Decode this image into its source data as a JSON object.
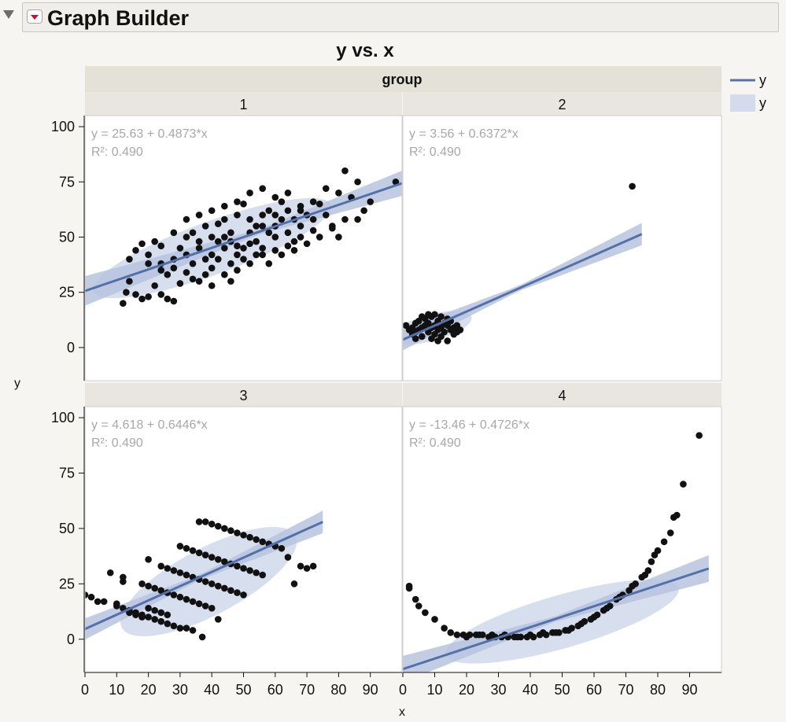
{
  "header": {
    "title": "Graph Builder",
    "disclosure_icon": "disclosure-triangle-down-icon",
    "menu_icon": "red-menu-triangle-icon"
  },
  "chart_data": {
    "type": "scatter",
    "title": "y vs. x",
    "xlabel": "x",
    "ylabel": "y",
    "group_label": "group",
    "xlim": [
      0,
      100
    ],
    "ylim": [
      -15,
      105
    ],
    "xticks": [
      0,
      10,
      20,
      30,
      40,
      50,
      60,
      70,
      80,
      90
    ],
    "yticks": [
      0,
      25,
      50,
      75,
      100
    ],
    "legend": {
      "position": "right",
      "entries": [
        {
          "label": "y",
          "kind": "line",
          "color": "#5470a9"
        },
        {
          "label": "y",
          "kind": "band",
          "color": "#d3dbec"
        }
      ]
    },
    "colors": {
      "points": "#111111",
      "fit_line": "#5470a9",
      "confidence_band": "#b7c4df",
      "density_ellipse": "#d3dbec",
      "annotation_text": "#a8a8a8"
    },
    "panels": [
      {
        "label": "1",
        "equation": "y = 25.63 + 0.4873*x",
        "r2": "R²: 0.490",
        "intercept": 25.63,
        "slope": 0.4873,
        "ellipse": {
          "cx": 40,
          "cy": 45,
          "rx": 40,
          "ry": 12,
          "angle": 20
        },
        "points": [
          [
            12,
            20
          ],
          [
            13,
            25
          ],
          [
            14,
            30
          ],
          [
            16,
            24
          ],
          [
            18,
            22
          ],
          [
            20,
            23
          ],
          [
            22,
            28
          ],
          [
            24,
            24
          ],
          [
            26,
            22
          ],
          [
            28,
            21
          ],
          [
            14,
            40
          ],
          [
            16,
            44
          ],
          [
            18,
            47
          ],
          [
            20,
            42
          ],
          [
            22,
            48
          ],
          [
            24,
            38
          ],
          [
            26,
            33
          ],
          [
            28,
            36
          ],
          [
            30,
            29
          ],
          [
            32,
            34
          ],
          [
            34,
            38
          ],
          [
            36,
            45
          ],
          [
            38,
            40
          ],
          [
            40,
            36
          ],
          [
            42,
            48
          ],
          [
            44,
            45
          ],
          [
            46,
            52
          ],
          [
            48,
            42
          ],
          [
            50,
            40
          ],
          [
            52,
            47
          ],
          [
            54,
            55
          ],
          [
            56,
            60
          ],
          [
            58,
            62
          ],
          [
            60,
            50
          ],
          [
            62,
            58
          ],
          [
            64,
            52
          ],
          [
            66,
            48
          ],
          [
            68,
            62
          ],
          [
            70,
            60
          ],
          [
            72,
            58
          ],
          [
            74,
            65
          ],
          [
            76,
            60
          ],
          [
            78,
            54
          ],
          [
            80,
            50
          ],
          [
            80,
            70
          ],
          [
            82,
            80
          ],
          [
            84,
            68
          ],
          [
            86,
            58
          ],
          [
            88,
            62
          ],
          [
            90,
            66
          ],
          [
            30,
            45
          ],
          [
            32,
            50
          ],
          [
            34,
            52
          ],
          [
            36,
            48
          ],
          [
            38,
            55
          ],
          [
            40,
            50
          ],
          [
            42,
            56
          ],
          [
            44,
            58
          ],
          [
            46,
            48
          ],
          [
            48,
            60
          ],
          [
            50,
            65
          ],
          [
            52,
            58
          ],
          [
            54,
            48
          ],
          [
            56,
            45
          ],
          [
            58,
            52
          ],
          [
            60,
            55
          ],
          [
            62,
            66
          ],
          [
            64,
            70
          ],
          [
            66,
            58
          ],
          [
            68,
            55
          ],
          [
            36,
            30
          ],
          [
            40,
            28
          ],
          [
            44,
            33
          ],
          [
            48,
            35
          ],
          [
            52,
            38
          ],
          [
            56,
            42
          ],
          [
            60,
            44
          ],
          [
            64,
            46
          ],
          [
            68,
            50
          ],
          [
            72,
            53
          ],
          [
            24,
            46
          ],
          [
            28,
            52
          ],
          [
            32,
            58
          ],
          [
            36,
            60
          ],
          [
            40,
            62
          ],
          [
            44,
            64
          ],
          [
            48,
            66
          ],
          [
            52,
            70
          ],
          [
            56,
            72
          ],
          [
            60,
            68
          ],
          [
            20,
            38
          ],
          [
            24,
            35
          ],
          [
            28,
            40
          ],
          [
            32,
            42
          ],
          [
            34,
            31
          ],
          [
            38,
            33
          ],
          [
            42,
            40
          ],
          [
            46,
            38
          ],
          [
            50,
            45
          ],
          [
            54,
            42
          ],
          [
            58,
            38
          ],
          [
            62,
            42
          ],
          [
            66,
            44
          ],
          [
            70,
            47
          ],
          [
            74,
            50
          ],
          [
            78,
            55
          ],
          [
            82,
            58
          ],
          [
            40,
            42
          ],
          [
            44,
            50
          ],
          [
            48,
            46
          ],
          [
            52,
            52
          ],
          [
            56,
            55
          ],
          [
            60,
            60
          ],
          [
            64,
            62
          ],
          [
            68,
            64
          ],
          [
            72,
            66
          ],
          [
            76,
            72
          ],
          [
            86,
            75
          ],
          [
            98,
            75
          ],
          [
            46,
            30
          ]
        ]
      },
      {
        "label": "2",
        "equation": "y = 3.56 + 0.6372*x",
        "r2": "R²: 0.490",
        "intercept": 3.56,
        "slope": 0.6372,
        "ellipse": {
          "cx": 9,
          "cy": 9,
          "rx": 13,
          "ry": 6,
          "angle": 15
        },
        "points": [
          [
            72,
            73
          ],
          [
            1,
            10
          ],
          [
            2,
            8
          ],
          [
            3,
            9
          ],
          [
            3,
            6
          ],
          [
            4,
            11
          ],
          [
            4,
            7
          ],
          [
            5,
            8
          ],
          [
            5,
            12
          ],
          [
            6,
            9
          ],
          [
            6,
            5
          ],
          [
            7,
            10
          ],
          [
            7,
            13
          ],
          [
            8,
            7
          ],
          [
            8,
            11
          ],
          [
            9,
            9
          ],
          [
            9,
            14
          ],
          [
            10,
            6
          ],
          [
            10,
            10
          ],
          [
            11,
            8
          ],
          [
            11,
            12
          ],
          [
            12,
            9
          ],
          [
            12,
            5
          ],
          [
            13,
            11
          ],
          [
            13,
            7
          ],
          [
            14,
            10
          ],
          [
            14,
            3
          ],
          [
            15,
            8
          ],
          [
            15,
            12
          ],
          [
            16,
            9
          ],
          [
            16,
            6
          ],
          [
            17,
            10
          ],
          [
            17,
            7
          ],
          [
            18,
            8
          ],
          [
            6,
            14
          ],
          [
            8,
            15
          ],
          [
            10,
            15
          ],
          [
            12,
            14
          ],
          [
            14,
            13
          ],
          [
            4,
            4
          ],
          [
            9,
            4
          ],
          [
            11,
            3
          ]
        ]
      },
      {
        "label": "3",
        "equation": "y = 4.618 + 0.6446*x",
        "r2": "R²: 0.490",
        "intercept": 4.618,
        "slope": 0.6446,
        "ellipse": {
          "cx": 39,
          "cy": 26,
          "rx": 31,
          "ry": 15,
          "angle": 28
        },
        "points": [
          [
            0,
            20
          ],
          [
            2,
            19
          ],
          [
            4,
            17
          ],
          [
            6,
            17
          ],
          [
            8,
            30
          ],
          [
            10,
            16
          ],
          [
            12,
            26
          ],
          [
            12,
            28
          ],
          [
            10,
            15
          ],
          [
            12,
            14
          ],
          [
            14,
            13
          ],
          [
            16,
            12
          ],
          [
            18,
            11
          ],
          [
            20,
            10
          ],
          [
            22,
            9
          ],
          [
            24,
            8
          ],
          [
            26,
            7
          ],
          [
            28,
            6
          ],
          [
            30,
            5
          ],
          [
            32,
            5
          ],
          [
            34,
            4
          ],
          [
            37,
            1
          ],
          [
            14,
            12
          ],
          [
            16,
            11
          ],
          [
            18,
            10
          ],
          [
            20,
            14
          ],
          [
            22,
            13
          ],
          [
            24,
            12
          ],
          [
            26,
            11
          ],
          [
            18,
            25
          ],
          [
            20,
            24
          ],
          [
            22,
            23
          ],
          [
            24,
            22
          ],
          [
            26,
            21
          ],
          [
            28,
            20
          ],
          [
            30,
            19
          ],
          [
            32,
            18
          ],
          [
            34,
            17
          ],
          [
            36,
            16
          ],
          [
            38,
            15
          ],
          [
            40,
            14
          ],
          [
            42,
            9
          ],
          [
            20,
            36
          ],
          [
            24,
            33
          ],
          [
            26,
            32
          ],
          [
            28,
            31
          ],
          [
            30,
            30
          ],
          [
            32,
            29
          ],
          [
            34,
            28
          ],
          [
            36,
            27
          ],
          [
            38,
            26
          ],
          [
            40,
            25
          ],
          [
            42,
            24
          ],
          [
            44,
            23
          ],
          [
            46,
            22
          ],
          [
            48,
            21
          ],
          [
            50,
            20
          ],
          [
            30,
            42
          ],
          [
            32,
            41
          ],
          [
            34,
            40
          ],
          [
            36,
            39
          ],
          [
            38,
            38
          ],
          [
            40,
            37
          ],
          [
            42,
            36
          ],
          [
            44,
            35
          ],
          [
            46,
            34
          ],
          [
            48,
            33
          ],
          [
            50,
            32
          ],
          [
            52,
            31
          ],
          [
            54,
            30
          ],
          [
            56,
            29
          ],
          [
            36,
            53
          ],
          [
            38,
            53
          ],
          [
            40,
            52
          ],
          [
            42,
            51
          ],
          [
            44,
            50
          ],
          [
            46,
            49
          ],
          [
            48,
            48
          ],
          [
            50,
            47
          ],
          [
            52,
            46
          ],
          [
            54,
            45
          ],
          [
            56,
            44
          ],
          [
            58,
            43
          ],
          [
            60,
            42
          ],
          [
            62,
            41
          ],
          [
            64,
            37
          ],
          [
            66,
            25
          ],
          [
            68,
            33
          ],
          [
            70,
            32
          ],
          [
            72,
            33
          ]
        ]
      },
      {
        "label": "4",
        "equation": "y = -13.46 + 0.4726*x",
        "r2": "R²: 0.490",
        "intercept": -13.46,
        "slope": 0.4726,
        "ellipse": {
          "cx": 50,
          "cy": 8,
          "rx": 38,
          "ry": 12,
          "angle": 16
        },
        "points": [
          [
            2,
            24
          ],
          [
            2,
            23
          ],
          [
            4,
            18
          ],
          [
            5,
            15
          ],
          [
            7,
            12
          ],
          [
            10,
            9
          ],
          [
            13,
            5
          ],
          [
            15,
            3
          ],
          [
            17,
            2
          ],
          [
            19,
            2
          ],
          [
            21,
            2
          ],
          [
            23,
            2
          ],
          [
            25,
            2
          ],
          [
            27,
            1
          ],
          [
            29,
            1
          ],
          [
            31,
            1
          ],
          [
            33,
            1
          ],
          [
            35,
            1
          ],
          [
            37,
            1
          ],
          [
            39,
            1
          ],
          [
            41,
            1
          ],
          [
            43,
            2
          ],
          [
            45,
            2
          ],
          [
            47,
            3
          ],
          [
            49,
            3
          ],
          [
            51,
            4
          ],
          [
            53,
            5
          ],
          [
            55,
            6
          ],
          [
            57,
            8
          ],
          [
            59,
            9
          ],
          [
            61,
            11
          ],
          [
            63,
            13
          ],
          [
            65,
            15
          ],
          [
            67,
            18
          ],
          [
            69,
            20
          ],
          [
            71,
            22
          ],
          [
            73,
            25
          ],
          [
            75,
            28
          ],
          [
            77,
            31
          ],
          [
            78,
            35
          ],
          [
            79,
            38
          ],
          [
            80,
            40
          ],
          [
            82,
            44
          ],
          [
            84,
            48
          ],
          [
            85,
            55
          ],
          [
            86,
            56
          ],
          [
            88,
            70
          ],
          [
            93,
            92
          ],
          [
            20,
            1
          ],
          [
            24,
            2
          ],
          [
            28,
            2
          ],
          [
            32,
            2
          ],
          [
            36,
            1
          ],
          [
            40,
            2
          ],
          [
            44,
            3
          ],
          [
            48,
            3
          ],
          [
            52,
            4
          ],
          [
            56,
            7
          ],
          [
            60,
            10
          ],
          [
            64,
            14
          ],
          [
            68,
            19
          ],
          [
            72,
            24
          ],
          [
            76,
            29
          ]
        ]
      }
    ]
  }
}
